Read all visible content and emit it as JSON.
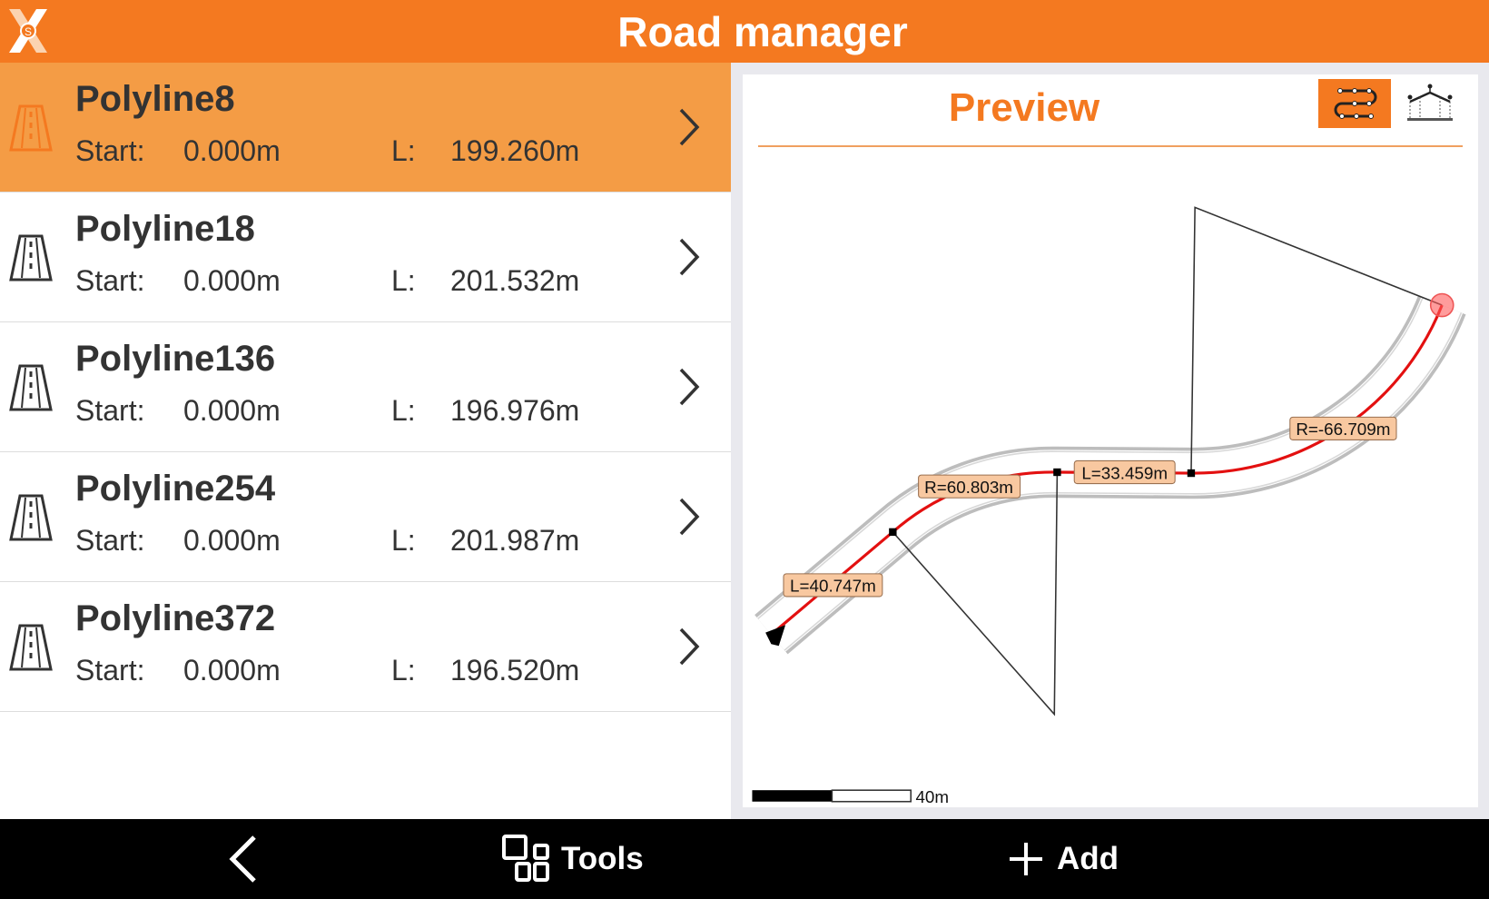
{
  "header": {
    "title": "Road manager",
    "logo_letter": "S",
    "accent": "#F47920"
  },
  "roads": [
    {
      "name": "Polyline8",
      "start_label": "Start:",
      "start": "0.000m",
      "length_label": "L:",
      "length": "199.260m",
      "selected": true
    },
    {
      "name": "Polyline18",
      "start_label": "Start:",
      "start": "0.000m",
      "length_label": "L:",
      "length": "201.532m",
      "selected": false
    },
    {
      "name": "Polyline136",
      "start_label": "Start:",
      "start": "0.000m",
      "length_label": "L:",
      "length": "196.976m",
      "selected": false
    },
    {
      "name": "Polyline254",
      "start_label": "Start:",
      "start": "0.000m",
      "length_label": "L:",
      "length": "201.987m",
      "selected": false
    },
    {
      "name": "Polyline372",
      "start_label": "Start:",
      "start": "0.000m",
      "length_label": "L:",
      "length": "196.520m",
      "selected": false
    }
  ],
  "preview": {
    "title": "Preview",
    "view_buttons": [
      {
        "icon": "plan-view-icon",
        "active": true
      },
      {
        "icon": "cross-section-view-icon",
        "active": false
      }
    ],
    "labels": {
      "seg1": "L=40.747m",
      "seg2": "R=60.803m",
      "seg3": "L=33.459m",
      "seg4": "R=-66.709m"
    },
    "scale_label": "40m"
  },
  "bottom": {
    "back_icon": "chevron-left-icon",
    "tools": "Tools",
    "add": "Add"
  }
}
